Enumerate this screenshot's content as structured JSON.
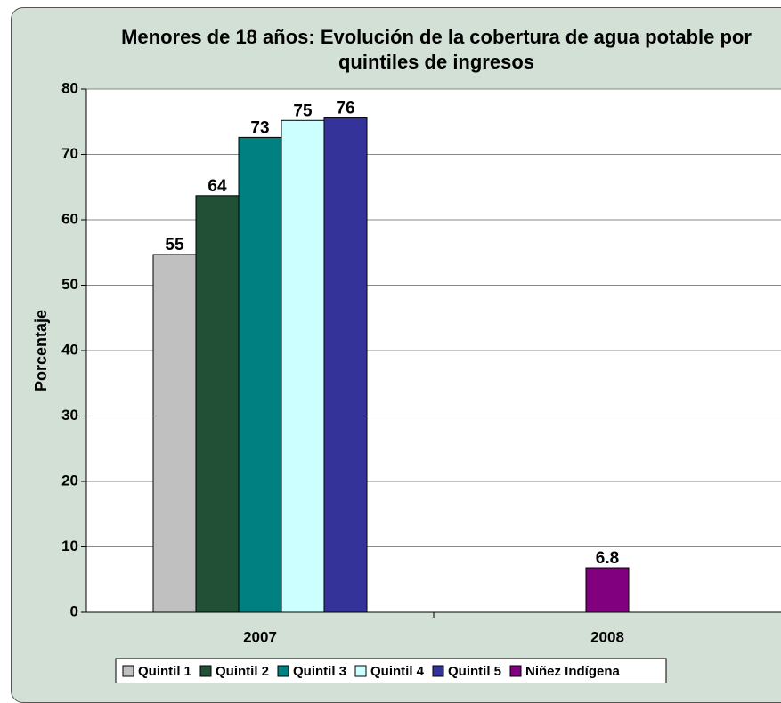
{
  "chart_data": {
    "type": "bar",
    "title": "Menores de 18 años: Evolución de la cobertura de agua potable por quintiles de ingresos",
    "ylabel": "Porcentaje",
    "categories": [
      "2007",
      "2008"
    ],
    "series": [
      {
        "name": "Quintil 1",
        "color": "#c0c0c0",
        "values": [
          54.7,
          null
        ],
        "value_labels": [
          "55",
          null
        ]
      },
      {
        "name": "Quintil 2",
        "color": "#215036",
        "values": [
          63.7,
          null
        ],
        "value_labels": [
          "64",
          null
        ]
      },
      {
        "name": "Quintil 3",
        "color": "#008080",
        "values": [
          72.6,
          null
        ],
        "value_labels": [
          "73",
          null
        ]
      },
      {
        "name": "Quintil 4",
        "color": "#ccffff",
        "values": [
          75.2,
          null
        ],
        "value_labels": [
          "75",
          null
        ]
      },
      {
        "name": "Quintil 5",
        "color": "#333399",
        "values": [
          75.6,
          null
        ],
        "value_labels": [
          "76",
          null
        ]
      },
      {
        "name": "Niñez Indígena",
        "color": "#800080",
        "values": [
          null,
          6.8
        ],
        "value_labels": [
          null,
          "6.8"
        ]
      }
    ],
    "ylim": [
      0,
      80
    ],
    "yticks": [
      0,
      10,
      20,
      30,
      40,
      50,
      60,
      70,
      80
    ],
    "grid": true,
    "legend": "bottom"
  }
}
